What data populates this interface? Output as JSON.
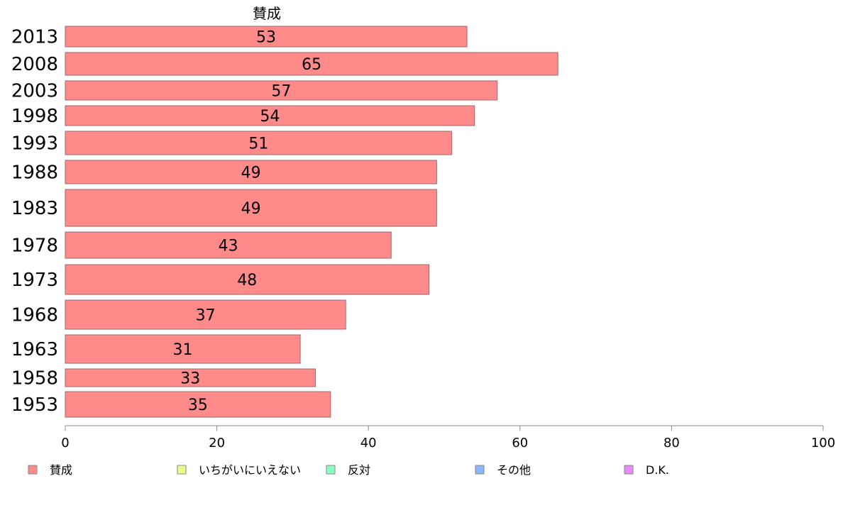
{
  "chart_data": {
    "type": "bar",
    "orientation": "horizontal",
    "stacked": true,
    "title": "",
    "xlabel": "",
    "ylabel": "",
    "xlim": [
      0,
      100
    ],
    "x_ticks": [
      "0",
      "20",
      "40",
      "60",
      "80",
      "100"
    ],
    "categories": [
      "2013",
      "2008",
      "2003",
      "1998",
      "1993",
      "1988",
      "1983",
      "1978",
      "1973",
      "1968",
      "1963",
      "1958",
      "1953"
    ],
    "series_header_label": "賛成",
    "series": [
      {
        "name": "賛成",
        "color": "#ff8a8a",
        "values": [
          53,
          65,
          57,
          54,
          51,
          49,
          49,
          43,
          48,
          37,
          31,
          33,
          35
        ],
        "labels": [
          "53",
          "65",
          "57",
          "54",
          "51",
          "49",
          "49",
          "43",
          "48",
          "37",
          "31",
          "33",
          "35"
        ]
      }
    ],
    "legend": {
      "placement": "bottom",
      "items": [
        {
          "label": "賛成",
          "color": "#ff8a8a"
        },
        {
          "label": "いちがいにいえない",
          "color": "#e8ff8a"
        },
        {
          "label": "反対",
          "color": "#8affc0"
        },
        {
          "label": "その他",
          "color": "#8ab8ff"
        },
        {
          "label": "D.K.",
          "color": "#e88aff"
        }
      ]
    },
    "grid": false
  }
}
